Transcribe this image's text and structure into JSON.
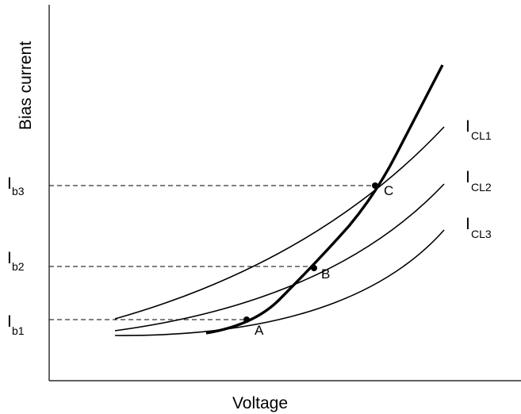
{
  "chart_data": {
    "type": "line",
    "title": "",
    "xlabel": "Voltage",
    "ylabel": "Bias current",
    "y_tick_labels": [
      {
        "main": "I",
        "sub": "b3"
      },
      {
        "main": "I",
        "sub": "b2"
      },
      {
        "main": "I",
        "sub": "b1"
      }
    ],
    "series": [
      {
        "main": "I",
        "sub": "CL1"
      },
      {
        "main": "I",
        "sub": "CL2"
      },
      {
        "main": "I",
        "sub": "CL3"
      }
    ],
    "operating_points": [
      {
        "label": "A"
      },
      {
        "label": "B"
      },
      {
        "label": "C"
      }
    ],
    "grid": false,
    "colors": {
      "line": "#000000",
      "background": "#ffffff"
    }
  }
}
